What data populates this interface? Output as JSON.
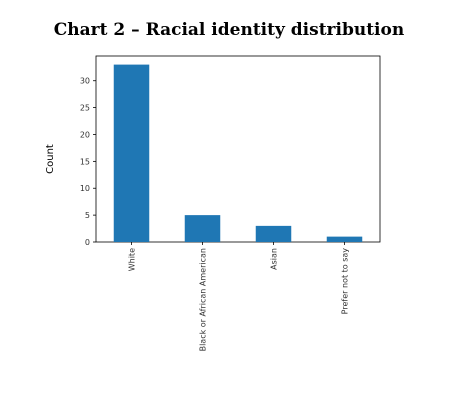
{
  "chart_data": {
    "type": "bar",
    "title": "Chart 2 – Racial identity distribution",
    "xlabel": "",
    "ylabel": "Count",
    "categories": [
      "White",
      "Black or African American",
      "Asian",
      "Prefer not to say"
    ],
    "values": [
      33,
      5,
      3,
      1
    ],
    "yticks": [
      0,
      5,
      10,
      15,
      20,
      25,
      30
    ],
    "ylim": [
      0,
      34.6
    ],
    "bar_color": "#1f77b4",
    "grid": false,
    "legend": "none"
  }
}
